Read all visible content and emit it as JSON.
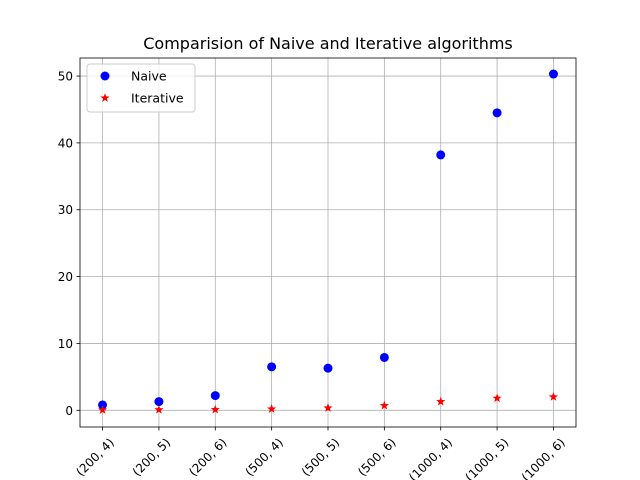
{
  "chart_data": {
    "type": "scatter",
    "title": "Comparision of Naive and Iterative algorithms",
    "xlabel": "",
    "ylabel": "",
    "categories": [
      "(200, 4)",
      "(200, 5)",
      "(200, 6)",
      "(500, 4)",
      "(500, 5)",
      "(500, 6)",
      "(1000, 4)",
      "(1000, 5)",
      "(1000, 6)"
    ],
    "ylim": [
      -2.5,
      52.7
    ],
    "yticks": [
      0,
      10,
      20,
      30,
      40,
      50
    ],
    "grid": true,
    "legend_position": "top-left",
    "series": [
      {
        "name": "Naive",
        "marker": "circle",
        "color": "#0000ff",
        "values": [
          0.8,
          1.3,
          2.2,
          6.5,
          6.3,
          7.9,
          38.2,
          44.5,
          50.3
        ]
      },
      {
        "name": "Iterative",
        "marker": "star",
        "color": "#ff0000",
        "values": [
          0.05,
          0.08,
          0.1,
          0.2,
          0.35,
          0.7,
          1.3,
          1.8,
          2.0
        ]
      }
    ]
  }
}
